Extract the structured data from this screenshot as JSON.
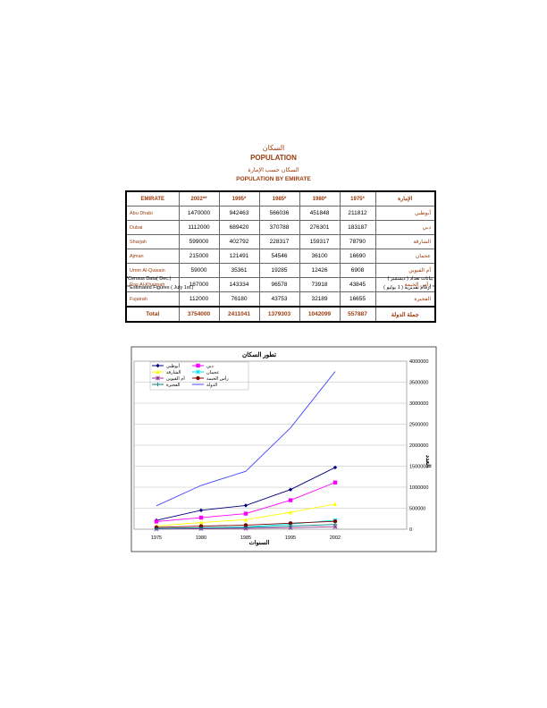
{
  "titles": {
    "ar1": "السكان",
    "en1": "POPULATION",
    "ar2": "السكان حسب الإمارة",
    "en2": "POPULATION BY EMIRATE"
  },
  "table": {
    "headers": [
      "EMIRATE",
      "2002**",
      "1995*",
      "1985*",
      "1980*",
      "1975*",
      "الإمارة"
    ],
    "rows": [
      {
        "en": "Abu Dhabi",
        "values": [
          "1470000",
          "942463",
          "566036",
          "451848",
          "211812"
        ],
        "ar": "أبوظبي"
      },
      {
        "en": "Dubai",
        "values": [
          "1112000",
          "689420",
          "370788",
          "276301",
          "183187"
        ],
        "ar": "دبي"
      },
      {
        "en": "Sharjah",
        "values": [
          "599000",
          "402792",
          "228317",
          "159317",
          "78790"
        ],
        "ar": "الشارقة"
      },
      {
        "en": "Ajman",
        "values": [
          "215000",
          "121491",
          "54546",
          "36100",
          "16690"
        ],
        "ar": "عجمان"
      },
      {
        "en": "Umm Al-Quwain",
        "values": [
          "59000",
          "35361",
          "19285",
          "12426",
          "6908"
        ],
        "ar": "أم القيوين"
      },
      {
        "en": "Ras Al-Khaimah",
        "values": [
          "187000",
          "143334",
          "96578",
          "73918",
          "43845"
        ],
        "ar": "رأس الخيمة"
      },
      {
        "en": "Fujairah",
        "values": [
          "112000",
          "76180",
          "43753",
          "32189",
          "16655"
        ],
        "ar": "الفجيرة"
      }
    ],
    "total": {
      "en": "Total",
      "values": [
        "3754000",
        "2411041",
        "1379303",
        "1042099",
        "557887"
      ],
      "ar": "جملة الدولة"
    }
  },
  "notes": {
    "census_en": "*Census Data( Dec.)",
    "estimated_en": "**Estimated Figures ( July 1st.)",
    "census_ar": "* بيانات تعداد ( ديسمبر )",
    "estimated_ar": "** أرقام تقديرية ( 1 يوليو )"
  },
  "chart_data": {
    "type": "line",
    "title": "تطور السكان",
    "xlabel": "السنوات",
    "ylabel": "العدد",
    "categories": [
      "1975",
      "1980",
      "1985",
      "1995",
      "2002"
    ],
    "ylim": [
      0,
      4000000
    ],
    "yticks": [
      "0",
      "500000",
      "1000000",
      "1500000",
      "2000000",
      "2500000",
      "3000000",
      "3500000",
      "4000000"
    ],
    "grid": true,
    "legend": "top-left",
    "series": [
      {
        "name": "أبوظبي",
        "color": "#000080",
        "marker": "diamond",
        "values": [
          211812,
          451848,
          566036,
          942463,
          1470000
        ]
      },
      {
        "name": "دبي",
        "color": "#ff00ff",
        "marker": "square",
        "values": [
          183187,
          276301,
          370788,
          689420,
          1112000
        ]
      },
      {
        "name": "الشارقة",
        "color": "#ffff00",
        "marker": "triangle",
        "values": [
          78790,
          159317,
          228317,
          402792,
          599000
        ]
      },
      {
        "name": "عجمان",
        "color": "#00e5ee",
        "marker": "x",
        "values": [
          16690,
          36100,
          54546,
          121491,
          215000
        ]
      },
      {
        "name": "أم القيوين",
        "color": "#993399",
        "marker": "star",
        "values": [
          6908,
          12426,
          19285,
          35361,
          59000
        ]
      },
      {
        "name": "رأس الخيمة",
        "color": "#800000",
        "marker": "circle",
        "values": [
          43845,
          73918,
          96578,
          143334,
          187000
        ]
      },
      {
        "name": "الفجيرة",
        "color": "#008080",
        "marker": "plus",
        "values": [
          16655,
          32189,
          43753,
          76180,
          112000
        ]
      },
      {
        "name": "الدولة",
        "color": "#4444ff",
        "marker": "none",
        "values": [
          557887,
          1042099,
          1379303,
          2411041,
          3754000
        ]
      }
    ]
  }
}
